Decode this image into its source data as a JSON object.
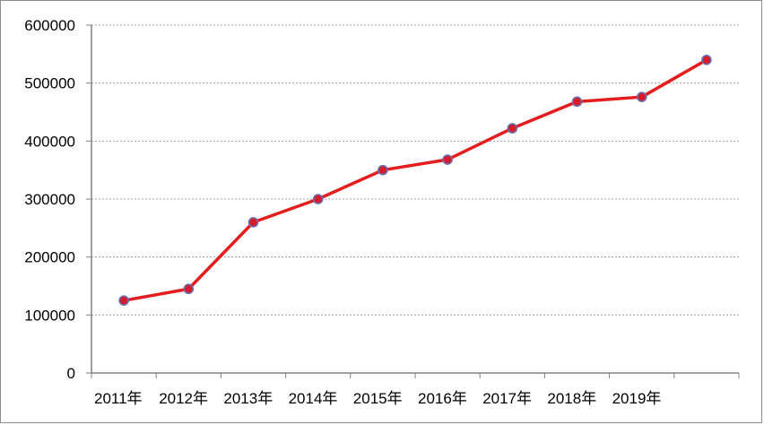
{
  "chart_data": {
    "type": "line",
    "categories": [
      "2011年",
      "2012年",
      "2013年",
      "2014年",
      "2015年",
      "2016年",
      "2017年",
      "2018年",
      "2019年",
      ""
    ],
    "series": [
      {
        "values": [
          125000,
          145000,
          260000,
          300000,
          350000,
          368000,
          422000,
          468000,
          476000,
          540000
        ]
      }
    ],
    "ylim": [
      0,
      600000
    ],
    "yticks": [
      0,
      100000,
      200000,
      300000,
      400000,
      500000,
      600000
    ],
    "grid": "horizontal dotted",
    "legend": "none",
    "colors": {
      "line": "#e41e1e",
      "marker_fill": "#d81b2a",
      "marker_edge": "#6a6fae",
      "grid": "#a0a0a0",
      "axis": "#808080"
    }
  }
}
